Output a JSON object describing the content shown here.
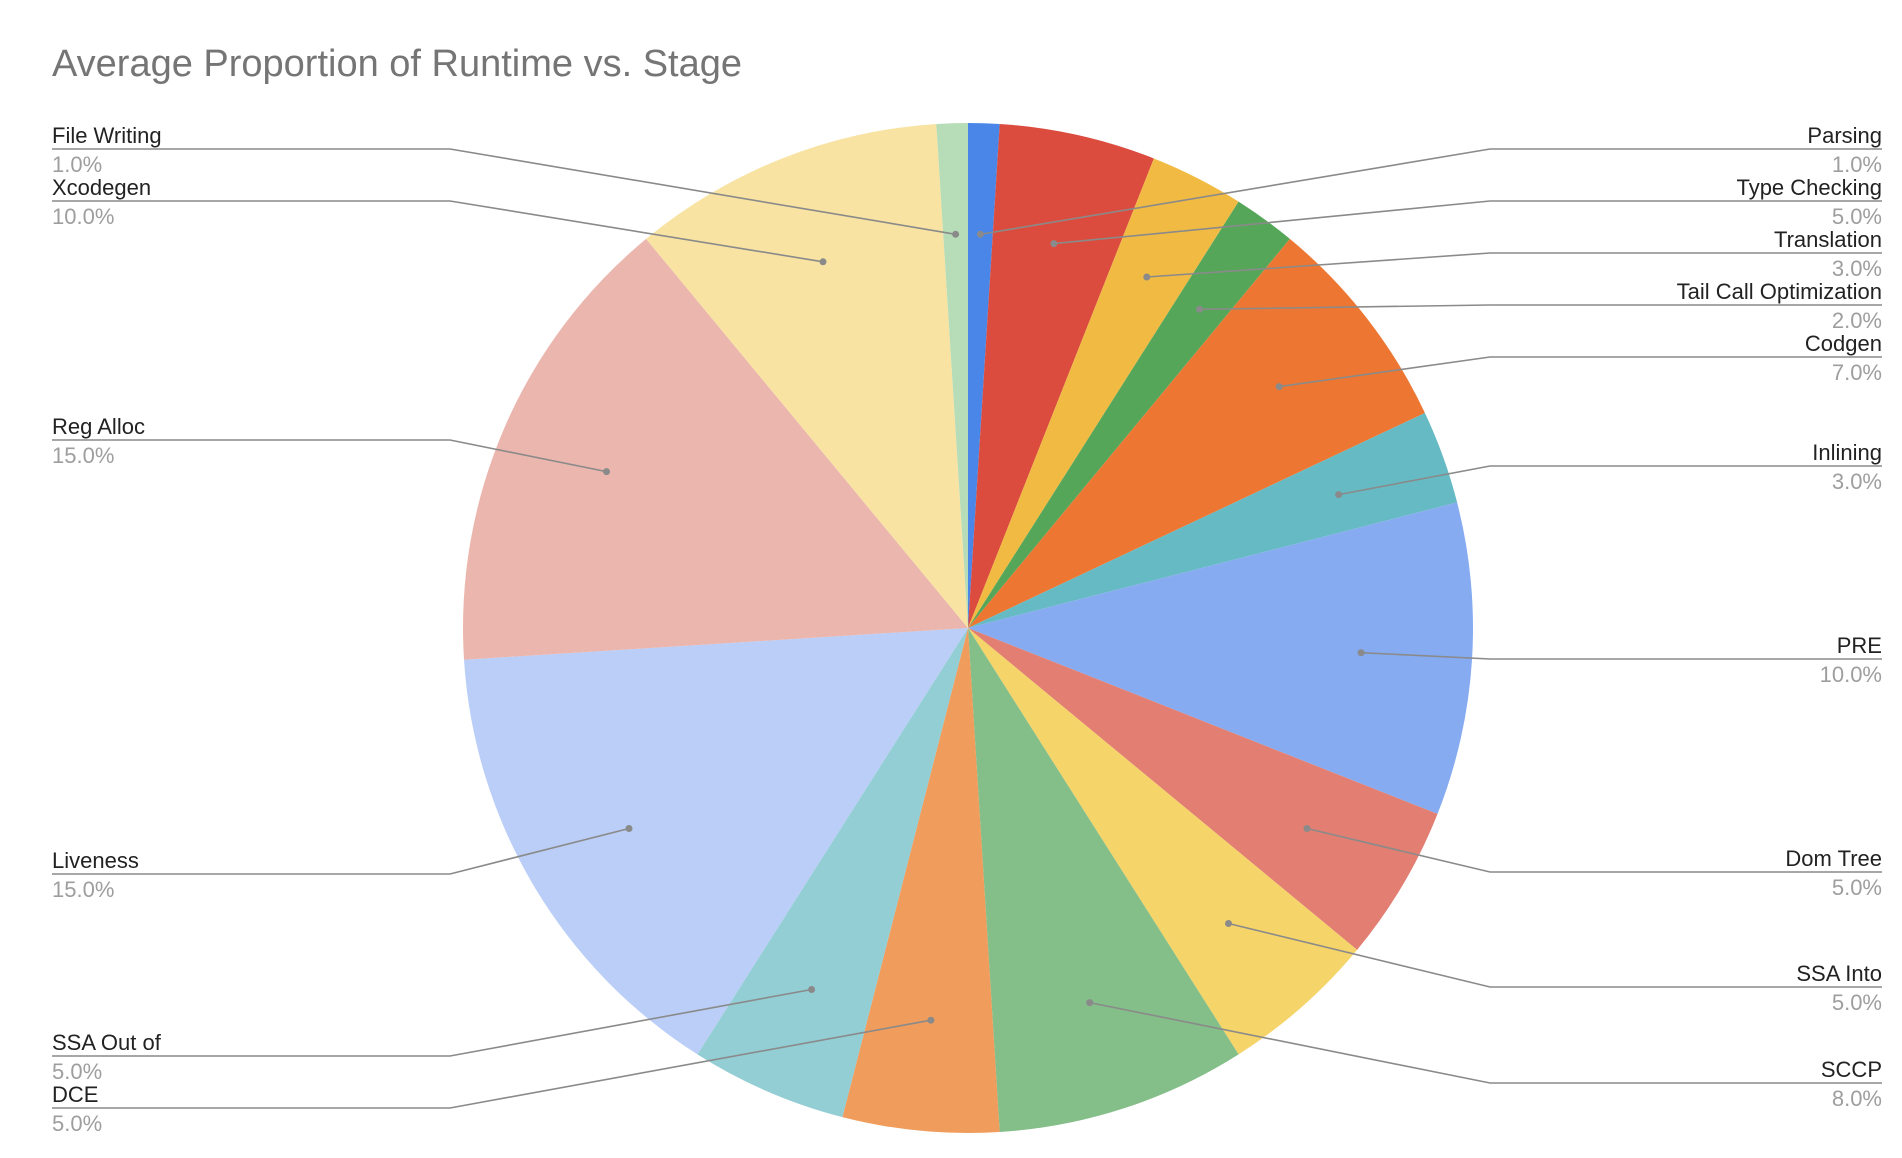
{
  "chart_data": {
    "type": "pie",
    "title": "Average Proportion of Runtime vs. Stage",
    "slices": [
      {
        "label": "Parsing",
        "value": 1.0,
        "display": "1.0%",
        "color": "#4a86e8"
      },
      {
        "label": "Type Checking",
        "value": 5.0,
        "display": "5.0%",
        "color": "#db4c3f"
      },
      {
        "label": "Translation",
        "value": 3.0,
        "display": "3.0%",
        "color": "#f1bb43"
      },
      {
        "label": "Tail Call Optimization",
        "value": 2.0,
        "display": "2.0%",
        "color": "#56a65a"
      },
      {
        "label": "Codgen",
        "value": 7.0,
        "display": "7.0%",
        "color": "#ed7732"
      },
      {
        "label": "Inlining",
        "value": 3.0,
        "display": "3.0%",
        "color": "#66bac4"
      },
      {
        "label": "PRE",
        "value": 10.0,
        "display": "10.0%",
        "color": "#86abf1"
      },
      {
        "label": "Dom Tree",
        "value": 5.0,
        "display": "5.0%",
        "color": "#e27f72"
      },
      {
        "label": "SSA Into",
        "value": 5.0,
        "display": "5.0%",
        "color": "#f5d46a"
      },
      {
        "label": "SCCP",
        "value": 8.0,
        "display": "8.0%",
        "color": "#84be88"
      },
      {
        "label": "DCE",
        "value": 5.0,
        "display": "5.0%",
        "color": "#ef9c5c"
      },
      {
        "label": "SSA Out of",
        "value": 5.0,
        "display": "5.0%",
        "color": "#93ced5"
      },
      {
        "label": "Liveness",
        "value": 15.0,
        "display": "15.0%",
        "color": "#bacef7"
      },
      {
        "label": "Reg Alloc",
        "value": 15.0,
        "display": "15.0%",
        "color": "#ebb6ae"
      },
      {
        "label": "Xcodegen",
        "value": 10.0,
        "display": "10.0%",
        "color": "#f8e3a3"
      },
      {
        "label": "File Writing",
        "value": 1.0,
        "display": "1.0%",
        "color": "#b6dcb8"
      }
    ]
  }
}
